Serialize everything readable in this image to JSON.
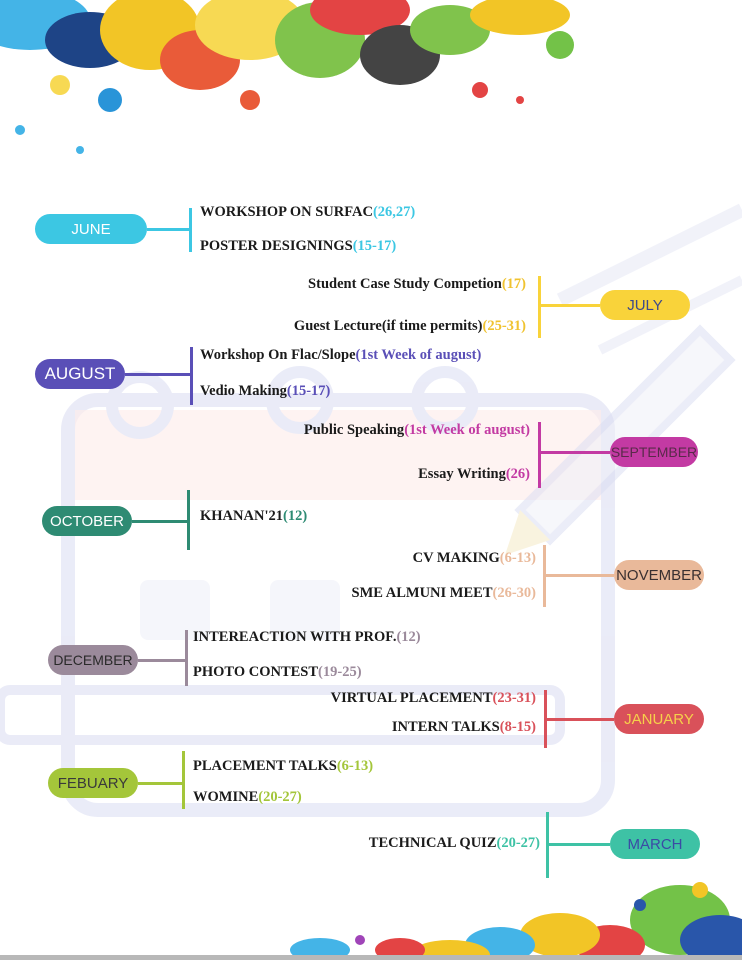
{
  "months": [
    {
      "key": "june",
      "label": "JUNE",
      "color": "#3cc7e3",
      "text_color": "#ffffff",
      "items": [
        {
          "text": "WORKSHOP ON SURFAC",
          "value": "(26,27)"
        },
        {
          "text": "POSTER DESIGNINGS",
          "value": "(15-17)"
        }
      ]
    },
    {
      "key": "july",
      "label": "JULY",
      "color": "#f9d33a",
      "text_color": "#3d4a8a",
      "items": [
        {
          "text": "Student Case Study Competion",
          "value": "(17)"
        },
        {
          "text": "Guest Lecture(if time permits)",
          "value": "(25-31)"
        }
      ]
    },
    {
      "key": "august",
      "label": "AUGUST",
      "color": "#5a4fb7",
      "text_color": "#ffffff",
      "items": [
        {
          "text": "Workshop On Flac/Slope",
          "value": "(1st Week of august)"
        },
        {
          "text": "Vedio Making",
          "value": "(15-17)"
        }
      ]
    },
    {
      "key": "september",
      "label": "SEPTEMBER",
      "color": "#c33aa3",
      "text_color": "#5a2a4a",
      "items": [
        {
          "text": "Public Speaking",
          "value": "(1st Week of august)"
        },
        {
          "text": "Essay Writing",
          "value": "(26)"
        }
      ]
    },
    {
      "key": "october",
      "label": "OCTOBER",
      "color": "#2e8b73",
      "text_color": "#ffffff",
      "items": [
        {
          "text": "KHANAN'21",
          "value": "(12)"
        }
      ]
    },
    {
      "key": "november",
      "label": "NOVEMBER",
      "color": "#e9b99a",
      "text_color": "#3a3030",
      "items": [
        {
          "text": "CV MAKING",
          "value": "(6-13)"
        },
        {
          "text": "SME ALMUNI MEET",
          "value": "(26-30)"
        }
      ]
    },
    {
      "key": "december",
      "label": "DECEMBER",
      "color": "#9b8a9b",
      "text_color": "#2a2a2a",
      "items": [
        {
          "text": "INTEREACTION WITH PROF.",
          "value": "(12)"
        },
        {
          "text": "PHOTO CONTEST",
          "value": "(19-25)"
        }
      ]
    },
    {
      "key": "january",
      "label": "JANUARY",
      "color": "#d9515a",
      "text_color": "#f6d04a",
      "items": [
        {
          "text": "VIRTUAL PLACEMENT",
          "value": "(23-31)"
        },
        {
          "text": "INTERN TALKS",
          "value": "(8-15)"
        }
      ]
    },
    {
      "key": "febuary",
      "label": "FEBUARY",
      "color": "#a4c63a",
      "text_color": "#3a3a3a",
      "items": [
        {
          "text": "PLACEMENT TALKS",
          "value": "(6-13)"
        },
        {
          "text": "WOMINE",
          "value": "(20-27)"
        }
      ]
    },
    {
      "key": "march",
      "label": "MARCH",
      "color": "#3ec2a5",
      "text_color": "#3b4aa5",
      "items": [
        {
          "text": "TECHNICAL QUIZ",
          "value": "(20-27)"
        }
      ]
    }
  ],
  "value_colors": {
    "june": "#3cc7e3",
    "july": "#f0c330",
    "august": "#5a4fb7",
    "september": "#c33aa3",
    "october": "#2e8b73",
    "november": "#e9b99a",
    "december": "#9b8a9b",
    "january": "#d9515a",
    "febuary": "#a4c63a",
    "march": "#3ec2a5"
  }
}
